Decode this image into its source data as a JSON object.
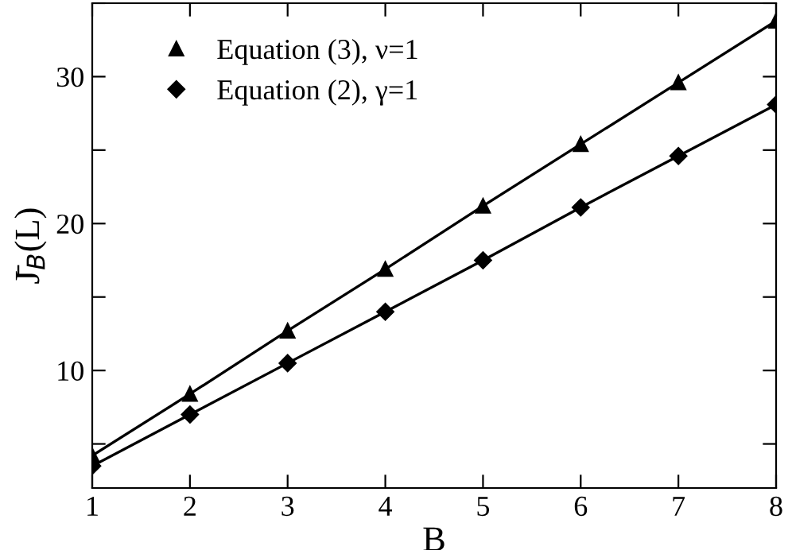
{
  "chart_data": {
    "type": "line",
    "xlabel": "B",
    "ylabel": "J̄$_{B}$(L)",
    "x": [
      1,
      2,
      3,
      4,
      5,
      6,
      7,
      8
    ],
    "series": [
      {
        "name": "Equation (3), ν=1",
        "color": "#000000",
        "marker": "triangle",
        "values": [
          4.2,
          8.4,
          12.7,
          16.9,
          21.2,
          25.4,
          29.6,
          33.8
        ]
      },
      {
        "name": "Equation (2), γ=1",
        "color": "#000000",
        "marker": "diamond",
        "values": [
          3.5,
          7.0,
          10.5,
          14.0,
          17.5,
          21.1,
          24.6,
          28.1
        ]
      }
    ],
    "xlim": [
      1,
      8
    ],
    "xticks": [
      1,
      2,
      3,
      4,
      5,
      6,
      7,
      8
    ],
    "ylim": [
      2,
      35
    ],
    "yticks": [
      {
        "value": 5,
        "label": null
      },
      10,
      {
        "value": 15,
        "label": null
      },
      20,
      {
        "value": 25,
        "label": null
      },
      30,
      {
        "value": 35,
        "label": null
      }
    ],
    "grid": false,
    "legend": "top left",
    "line_style": "solid"
  }
}
